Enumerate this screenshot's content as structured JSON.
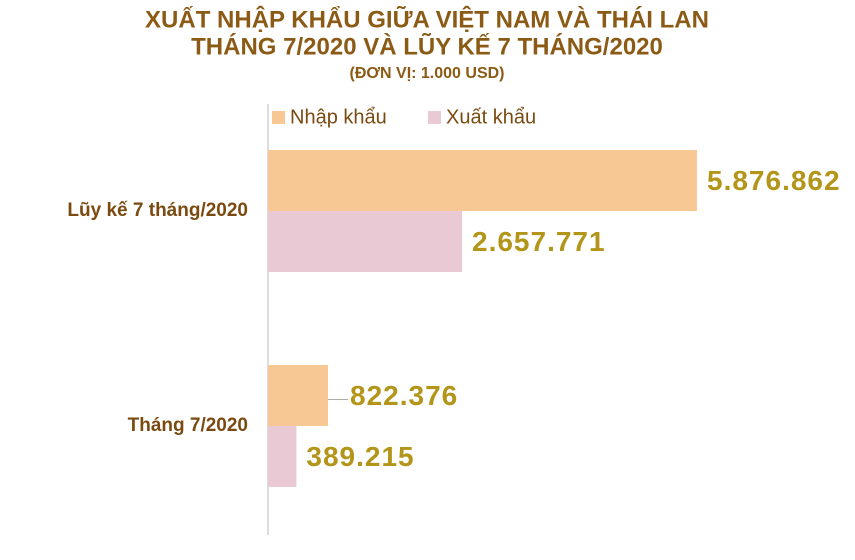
{
  "chart_data": {
    "type": "hbar",
    "title": [
      "XUẤT NHẬP KHẨU GIỮA VIỆT NAM VÀ THÁI LAN",
      "THÁNG 7/2020 VÀ LŨY KẾ 7 THÁNG/2020"
    ],
    "subtitle": "(ĐƠN VỊ: 1.000 USD)",
    "categories": [
      "Lũy kế 7 tháng/2020",
      "Tháng 7/2020"
    ],
    "series": [
      {
        "name": "Nhập khẩu",
        "color": "#f8c894",
        "values": [
          5876862,
          822376
        ],
        "value_labels": [
          "5.876.862",
          "822.376"
        ]
      },
      {
        "name": "Xuất khẩu",
        "color": "#e8c9d4",
        "values": [
          2657771,
          389215
        ],
        "value_labels": [
          "2.657.771",
          "389.215"
        ]
      }
    ],
    "legend": "top"
  }
}
